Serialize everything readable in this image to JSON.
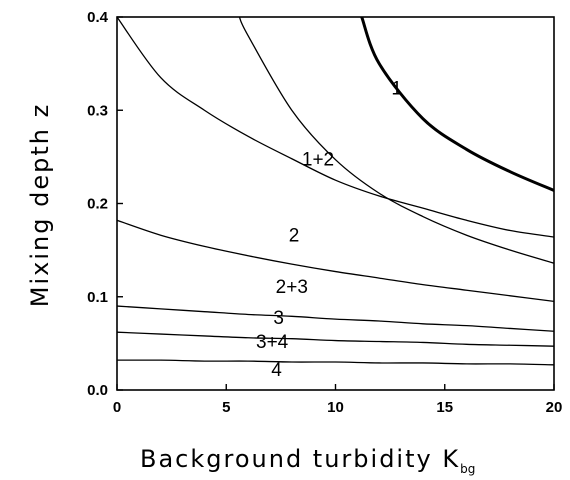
{
  "chart_data": {
    "type": "line",
    "title": "",
    "xlabel": "Background turbidity K",
    "xlabel_subscript": "bg",
    "ylabel": "Mixing depth z",
    "xlim": [
      0,
      20
    ],
    "ylim": [
      0.0,
      0.4
    ],
    "xticks": [
      "0",
      "5",
      "10",
      "15",
      "20"
    ],
    "yticks": [
      "0.0",
      "0.1",
      "0.2",
      "0.3",
      "0.4"
    ],
    "grid": false,
    "series": [
      {
        "x": [
          0,
          2,
          4,
          6,
          8,
          10,
          12,
          14,
          16,
          18,
          20
        ],
        "y": [
          0.032,
          0.032,
          0.031,
          0.031,
          0.03,
          0.03,
          0.029,
          0.029,
          0.028,
          0.028,
          0.027
        ]
      },
      {
        "x": [
          0,
          2,
          4,
          6,
          8,
          10,
          12,
          14,
          16,
          18,
          20
        ],
        "y": [
          0.062,
          0.06,
          0.058,
          0.056,
          0.055,
          0.053,
          0.052,
          0.051,
          0.049,
          0.048,
          0.047
        ]
      },
      {
        "x": [
          0,
          2,
          4,
          6,
          8,
          10,
          12,
          14,
          16,
          18,
          20
        ],
        "y": [
          0.09,
          0.087,
          0.084,
          0.081,
          0.079,
          0.076,
          0.074,
          0.071,
          0.069,
          0.066,
          0.063
        ]
      },
      {
        "x": [
          0,
          2,
          4,
          6,
          8,
          10,
          12,
          14,
          16,
          18,
          20
        ],
        "y": [
          0.182,
          0.166,
          0.154,
          0.144,
          0.135,
          0.127,
          0.12,
          0.113,
          0.107,
          0.101,
          0.095
        ]
      },
      {
        "x": [
          0,
          2,
          4,
          6,
          8,
          10,
          12,
          14,
          16,
          18,
          20
        ],
        "y": [
          0.4,
          0.335,
          0.3,
          0.272,
          0.248,
          0.225,
          0.208,
          0.195,
          0.182,
          0.171,
          0.164
        ]
      },
      {
        "x": [
          5.6,
          6,
          8,
          10,
          12,
          14,
          16,
          18,
          20
        ],
        "y": [
          0.4,
          0.38,
          0.3,
          0.247,
          0.211,
          0.186,
          0.166,
          0.15,
          0.136
        ]
      },
      {
        "x": [
          11.2,
          12,
          14,
          16,
          18,
          20
        ],
        "y": [
          0.4,
          0.35,
          0.291,
          0.258,
          0.234,
          0.214
        ]
      }
    ],
    "annotations": [
      {
        "text": "1",
        "x": 12.8,
        "y": 0.317
      },
      {
        "text": "1+2",
        "x": 9.2,
        "y": 0.241
      },
      {
        "text": "2",
        "x": 8.1,
        "y": 0.159
      },
      {
        "text": "2+3",
        "x": 8.0,
        "y": 0.104
      },
      {
        "text": "3",
        "x": 7.4,
        "y": 0.071
      },
      {
        "text": "3+4",
        "x": 7.1,
        "y": 0.045
      },
      {
        "text": "4",
        "x": 7.3,
        "y": 0.015
      }
    ]
  }
}
